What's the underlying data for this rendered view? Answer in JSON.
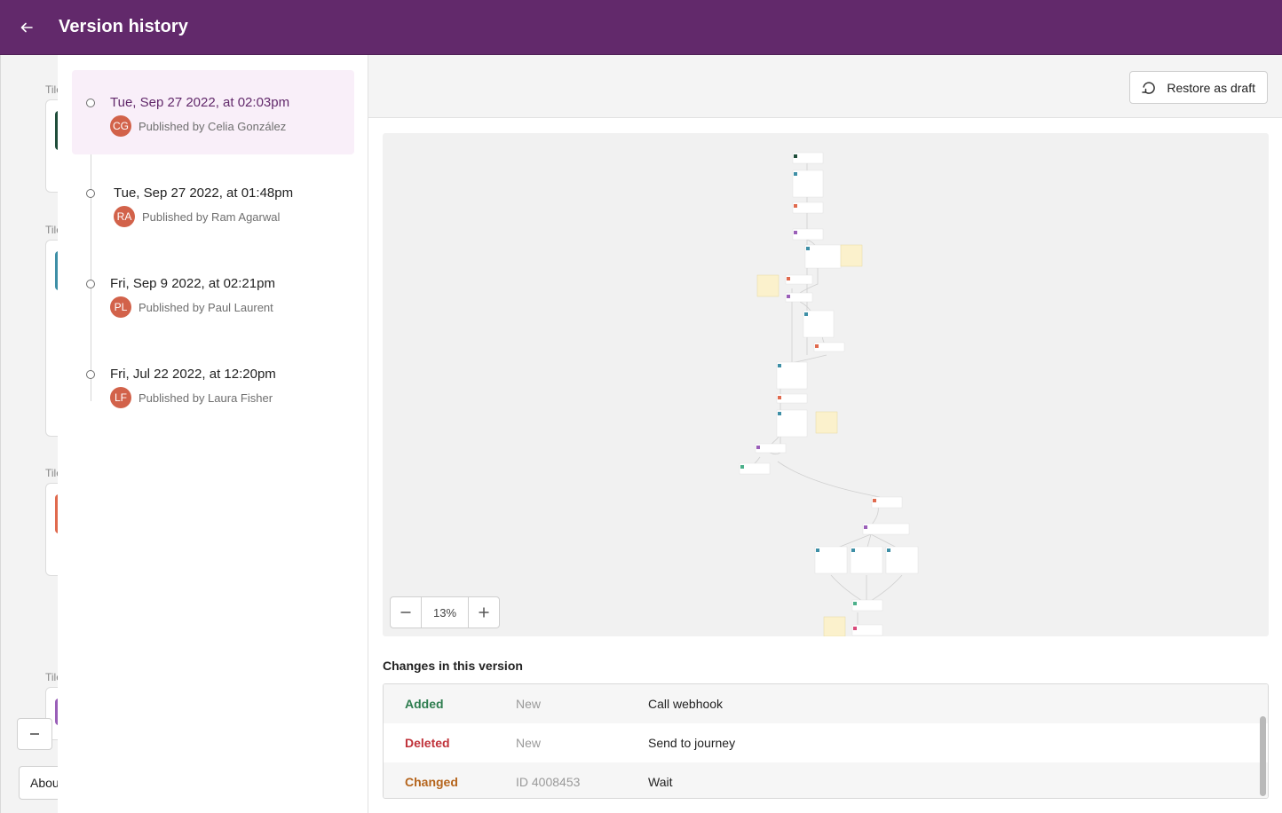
{
  "header": {
    "title": "Version history"
  },
  "background_editor": {
    "tile_label": "Tile",
    "about_label": "About"
  },
  "versions": [
    {
      "date": "Tue, Sep 27 2022, at 02:03pm",
      "initials": "CG",
      "published_by": "Published by Celia González",
      "selected": true
    },
    {
      "date": "Tue, Sep 27 2022, at 01:48pm",
      "initials": "RA",
      "published_by": "Published by Ram Agarwal",
      "selected": false
    },
    {
      "date": "Fri, Sep 9 2022, at 02:21pm",
      "initials": "PL",
      "published_by": "Published by Paul Laurent",
      "selected": false
    },
    {
      "date": "Fri, Jul 22 2022, at 12:20pm",
      "initials": "LF",
      "published_by": "Published by Laura Fisher",
      "selected": false
    }
  ],
  "toolbar": {
    "restore_label": "Restore as draft"
  },
  "canvas": {
    "zoom_level": "13%"
  },
  "changes": {
    "title": "Changes in this version",
    "rows": [
      {
        "type": "Added",
        "id": "New",
        "name": "Call webhook",
        "color": "#2e7d4f"
      },
      {
        "type": "Deleted",
        "id": "New",
        "name": "Send to journey",
        "color": "#c0323a"
      },
      {
        "type": "Changed",
        "id": "ID 4008453",
        "name": "Wait",
        "color": "#b5651d"
      }
    ]
  },
  "colors": {
    "header": "#62296b",
    "selected_bg": "#f9eff9",
    "avatar": "#d2624a"
  }
}
